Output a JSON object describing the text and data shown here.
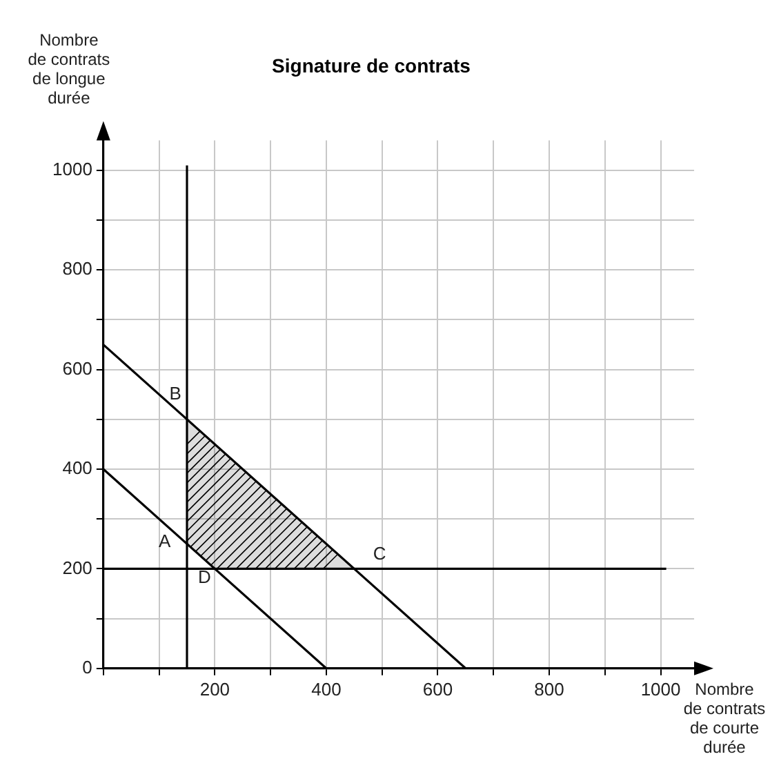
{
  "chart_data": {
    "type": "line",
    "title": "Signature de contrats",
    "xlabel": "Nombre\nde contrats\nde courte\ndurée",
    "ylabel": "Nombre\nde contrats\nde longue\ndurée",
    "xlim": [
      0,
      1060
    ],
    "ylim": [
      0,
      1060
    ],
    "xticks": [
      {
        "value": 0,
        "label": null
      },
      {
        "value": 100,
        "label": null
      },
      200,
      {
        "value": 300,
        "label": null
      },
      400,
      {
        "value": 500,
        "label": null
      },
      600,
      {
        "value": 700,
        "label": null
      },
      800,
      {
        "value": 900,
        "label": null
      },
      1000
    ],
    "yticks": [
      0,
      {
        "value": 100,
        "label": null
      },
      200,
      {
        "value": 300,
        "label": null
      },
      400,
      {
        "value": 500,
        "label": null
      },
      600,
      {
        "value": 700,
        "label": null
      },
      800,
      {
        "value": 900,
        "label": null
      },
      1000
    ],
    "grid": true,
    "legend": false,
    "marker": "none",
    "series": [
      {
        "type": "line",
        "color": "#000000",
        "x": [
          150,
          150
        ],
        "values": [
          0,
          1010
        ]
      },
      {
        "type": "line",
        "color": "#000000",
        "x": [
          0,
          1010
        ],
        "values": [
          200,
          200
        ]
      },
      {
        "type": "line",
        "color": "#000000",
        "x": [
          0,
          400
        ],
        "values": [
          400,
          0
        ]
      },
      {
        "type": "line",
        "color": "#000000",
        "x": [
          0,
          650
        ],
        "values": [
          650,
          0
        ]
      },
      {
        "type": "area",
        "color": "#000000",
        "x": [
          150,
          150,
          450,
          200,
          150
        ],
        "values": [
          250,
          500,
          200,
          200,
          250
        ]
      }
    ],
    "annotations": [
      {
        "text": "A",
        "x": 150,
        "y": 250
      },
      {
        "text": "B",
        "x": 150,
        "y": 500
      },
      {
        "text": "C",
        "x": 450,
        "y": 200
      },
      {
        "text": "D",
        "x": 200,
        "y": 200
      }
    ]
  }
}
